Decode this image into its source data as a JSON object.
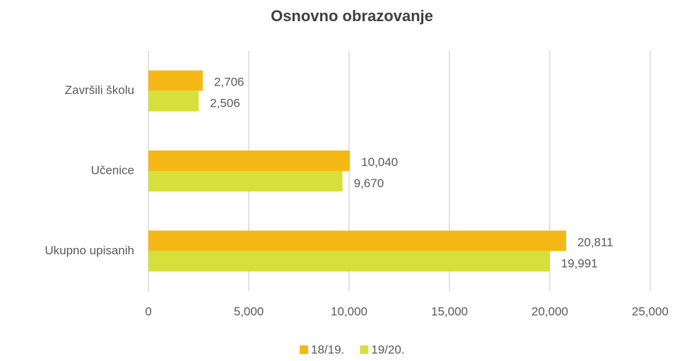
{
  "chart_data": {
    "type": "bar",
    "orientation": "horizontal",
    "title": "Osnovno obrazovanje",
    "categories": [
      "Završili školu",
      "Učenice",
      "Ukupno upisanih"
    ],
    "series": [
      {
        "name": "18/19.",
        "color": "#f5b816",
        "values": [
          2706,
          10040,
          20811
        ],
        "value_labels": [
          "2,706",
          "10,040",
          "20,811"
        ]
      },
      {
        "name": "19/20.",
        "color": "#d6e03a",
        "values": [
          2506,
          9670,
          19991
        ],
        "value_labels": [
          "2,506",
          "9,670",
          "19,991"
        ]
      }
    ],
    "xlim": [
      0,
      25000
    ],
    "xticks": [
      0,
      {
        "value": 5000,
        "label": "5,000"
      },
      {
        "value": 10000,
        "label": "10,000"
      },
      {
        "value": 15000,
        "label": "15,000"
      },
      {
        "value": 20000,
        "label": "20,000"
      },
      {
        "value": 25000,
        "label": "25,000"
      }
    ],
    "grid": true,
    "legend": "bottom"
  }
}
